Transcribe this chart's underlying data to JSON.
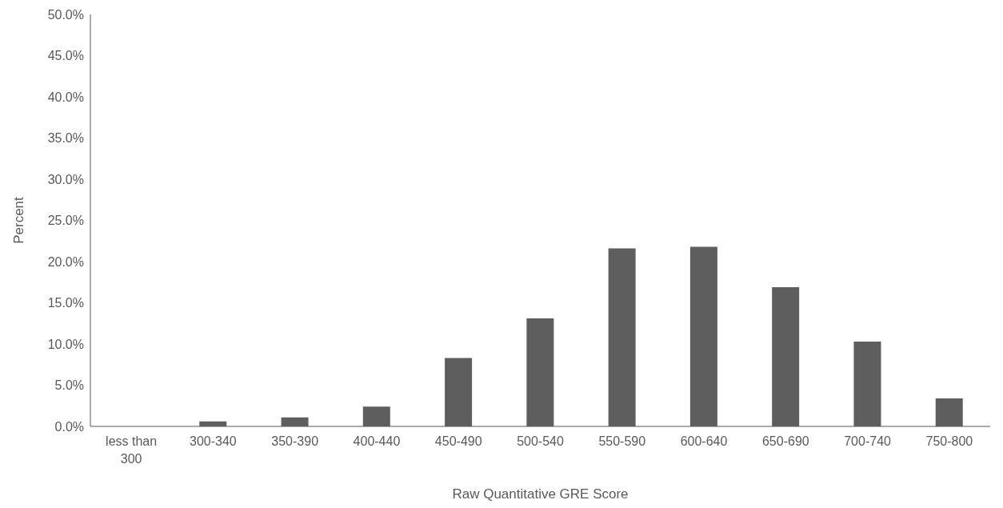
{
  "chart_data": {
    "type": "bar",
    "xlabel": "Raw Quantitative GRE Score",
    "ylabel": "Percent",
    "categories": [
      "less than 300",
      "300-340",
      "350-390",
      "400-440",
      "450-490",
      "500-540",
      "550-590",
      "600-640",
      "650-690",
      "700-740",
      "750-800"
    ],
    "values": [
      0,
      0.6,
      1.1,
      2.4,
      8.3,
      13.1,
      21.6,
      21.8,
      16.9,
      10.3,
      3.4
    ],
    "color": "#5e5e5e",
    "ylim": [
      0,
      50
    ],
    "yticks": [
      {
        "value": 0,
        "label": "0.0%"
      },
      {
        "value": 5,
        "label": "5.0%"
      },
      {
        "value": 10,
        "label": "10.0%"
      },
      {
        "value": 15,
        "label": "15.0%"
      },
      {
        "value": 20,
        "label": "20.0%"
      },
      {
        "value": 25,
        "label": "25.0%"
      },
      {
        "value": 30,
        "label": "30.0%"
      },
      {
        "value": 35,
        "label": "35.0%"
      },
      {
        "value": 40,
        "label": "40.0%"
      },
      {
        "value": 45,
        "label": "45.0%"
      },
      {
        "value": 50,
        "label": "50.0%"
      }
    ],
    "grid": false
  }
}
